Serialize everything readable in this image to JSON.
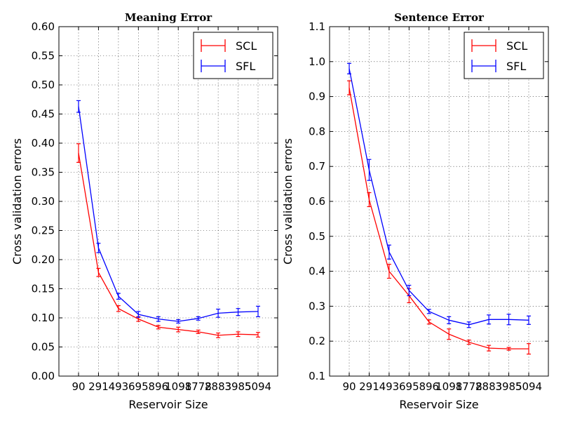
{
  "chart_data": [
    {
      "type": "line",
      "title": "Meaning Error",
      "xlabel": "Reservoir Size",
      "ylabel": "Cross validation errors",
      "categories": [
        "90",
        "291",
        "493",
        "695",
        "896",
        "1098",
        "1778",
        "2883",
        "3985",
        "5094"
      ],
      "ylim": [
        0.0,
        0.6
      ],
      "yticks": [
        "0.00",
        "0.05",
        "0.10",
        "0.15",
        "0.20",
        "0.25",
        "0.30",
        "0.35",
        "0.40",
        "0.45",
        "0.50",
        "0.55",
        "0.60"
      ],
      "grid": true,
      "legend_position": "top-right",
      "series": [
        {
          "name": "SCL",
          "color": "#ff0000",
          "values": [
            0.383,
            0.178,
            0.116,
            0.098,
            0.084,
            0.08,
            0.076,
            0.07,
            0.072,
            0.071
          ],
          "errors": [
            0.016,
            0.007,
            0.005,
            0.004,
            0.003,
            0.004,
            0.003,
            0.004,
            0.004,
            0.004
          ]
        },
        {
          "name": "SFL",
          "color": "#0000ff",
          "values": [
            0.463,
            0.22,
            0.137,
            0.106,
            0.098,
            0.094,
            0.099,
            0.108,
            0.11,
            0.111
          ],
          "errors": [
            0.01,
            0.008,
            0.005,
            0.005,
            0.004,
            0.003,
            0.003,
            0.007,
            0.006,
            0.009
          ]
        }
      ]
    },
    {
      "type": "line",
      "title": "Sentence Error",
      "xlabel": "Reservoir Size",
      "ylabel": "Cross validation errors",
      "categories": [
        "90",
        "291",
        "493",
        "695",
        "896",
        "1098",
        "1778",
        "2883",
        "3985",
        "5094"
      ],
      "ylim": [
        0.1,
        1.1
      ],
      "yticks": [
        "0.1",
        "0.2",
        "0.3",
        "0.4",
        "0.5",
        "0.6",
        "0.7",
        "0.8",
        "0.9",
        "1.0",
        "1.1"
      ],
      "grid": true,
      "legend_position": "top-right",
      "series": [
        {
          "name": "SCL",
          "color": "#ff0000",
          "values": [
            0.925,
            0.605,
            0.4,
            0.33,
            0.255,
            0.22,
            0.197,
            0.18,
            0.178,
            0.178
          ],
          "errors": [
            0.02,
            0.02,
            0.02,
            0.02,
            0.006,
            0.015,
            0.006,
            0.008,
            0.004,
            0.015
          ]
        },
        {
          "name": "SFL",
          "color": "#0000ff",
          "values": [
            0.98,
            0.69,
            0.455,
            0.345,
            0.285,
            0.26,
            0.247,
            0.262,
            0.262,
            0.26
          ],
          "errors": [
            0.015,
            0.03,
            0.02,
            0.015,
            0.006,
            0.01,
            0.008,
            0.013,
            0.015,
            0.012
          ]
        }
      ]
    }
  ]
}
